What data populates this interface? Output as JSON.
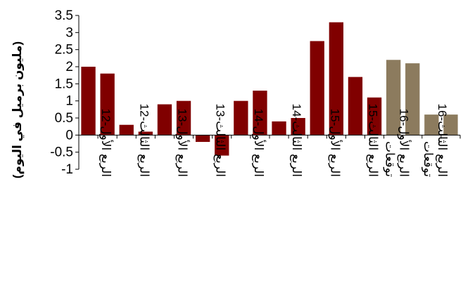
{
  "chart_data": {
    "type": "bar",
    "title": "",
    "xlabel": "",
    "ylabel": "(مليون برميل في اليوم)",
    "ylim": [
      -1,
      3.5
    ],
    "yticks": [
      -1,
      -0.5,
      0,
      0.5,
      1,
      1.5,
      2,
      2.5,
      3,
      3.5
    ],
    "ytick_labels": [
      "-1",
      "-0.5",
      "0",
      "0.5",
      "1",
      "1.5",
      "2",
      "2.5",
      "3",
      "3.5"
    ],
    "grid": false,
    "legend": "none",
    "colors": {
      "actual": "#800000",
      "forecast": "#8C7B5E"
    },
    "category_labels": [
      "الربع الأول-12",
      "الربع الثالث-12",
      "الربع الأول-13",
      "الربع الثالث-13",
      "الربع الأول-14",
      "الربع الثالث-14",
      "الربع الأول-15",
      "الربع الثالث-15",
      "الربع الأول-16 توقعات",
      "الربع الثالث-16 توقعات"
    ],
    "values": [
      2.0,
      1.8,
      0.3,
      0.1,
      0.9,
      1.0,
      -0.2,
      -0.6,
      1.0,
      1.3,
      0.4,
      0.5,
      2.75,
      3.3,
      1.7,
      1.1,
      2.2,
      2.1,
      0.6,
      0.6
    ],
    "series_kind": [
      "actual",
      "actual",
      "actual",
      "actual",
      "actual",
      "actual",
      "actual",
      "actual",
      "actual",
      "actual",
      "actual",
      "actual",
      "actual",
      "actual",
      "actual",
      "actual",
      "forecast",
      "forecast",
      "forecast",
      "forecast"
    ]
  }
}
